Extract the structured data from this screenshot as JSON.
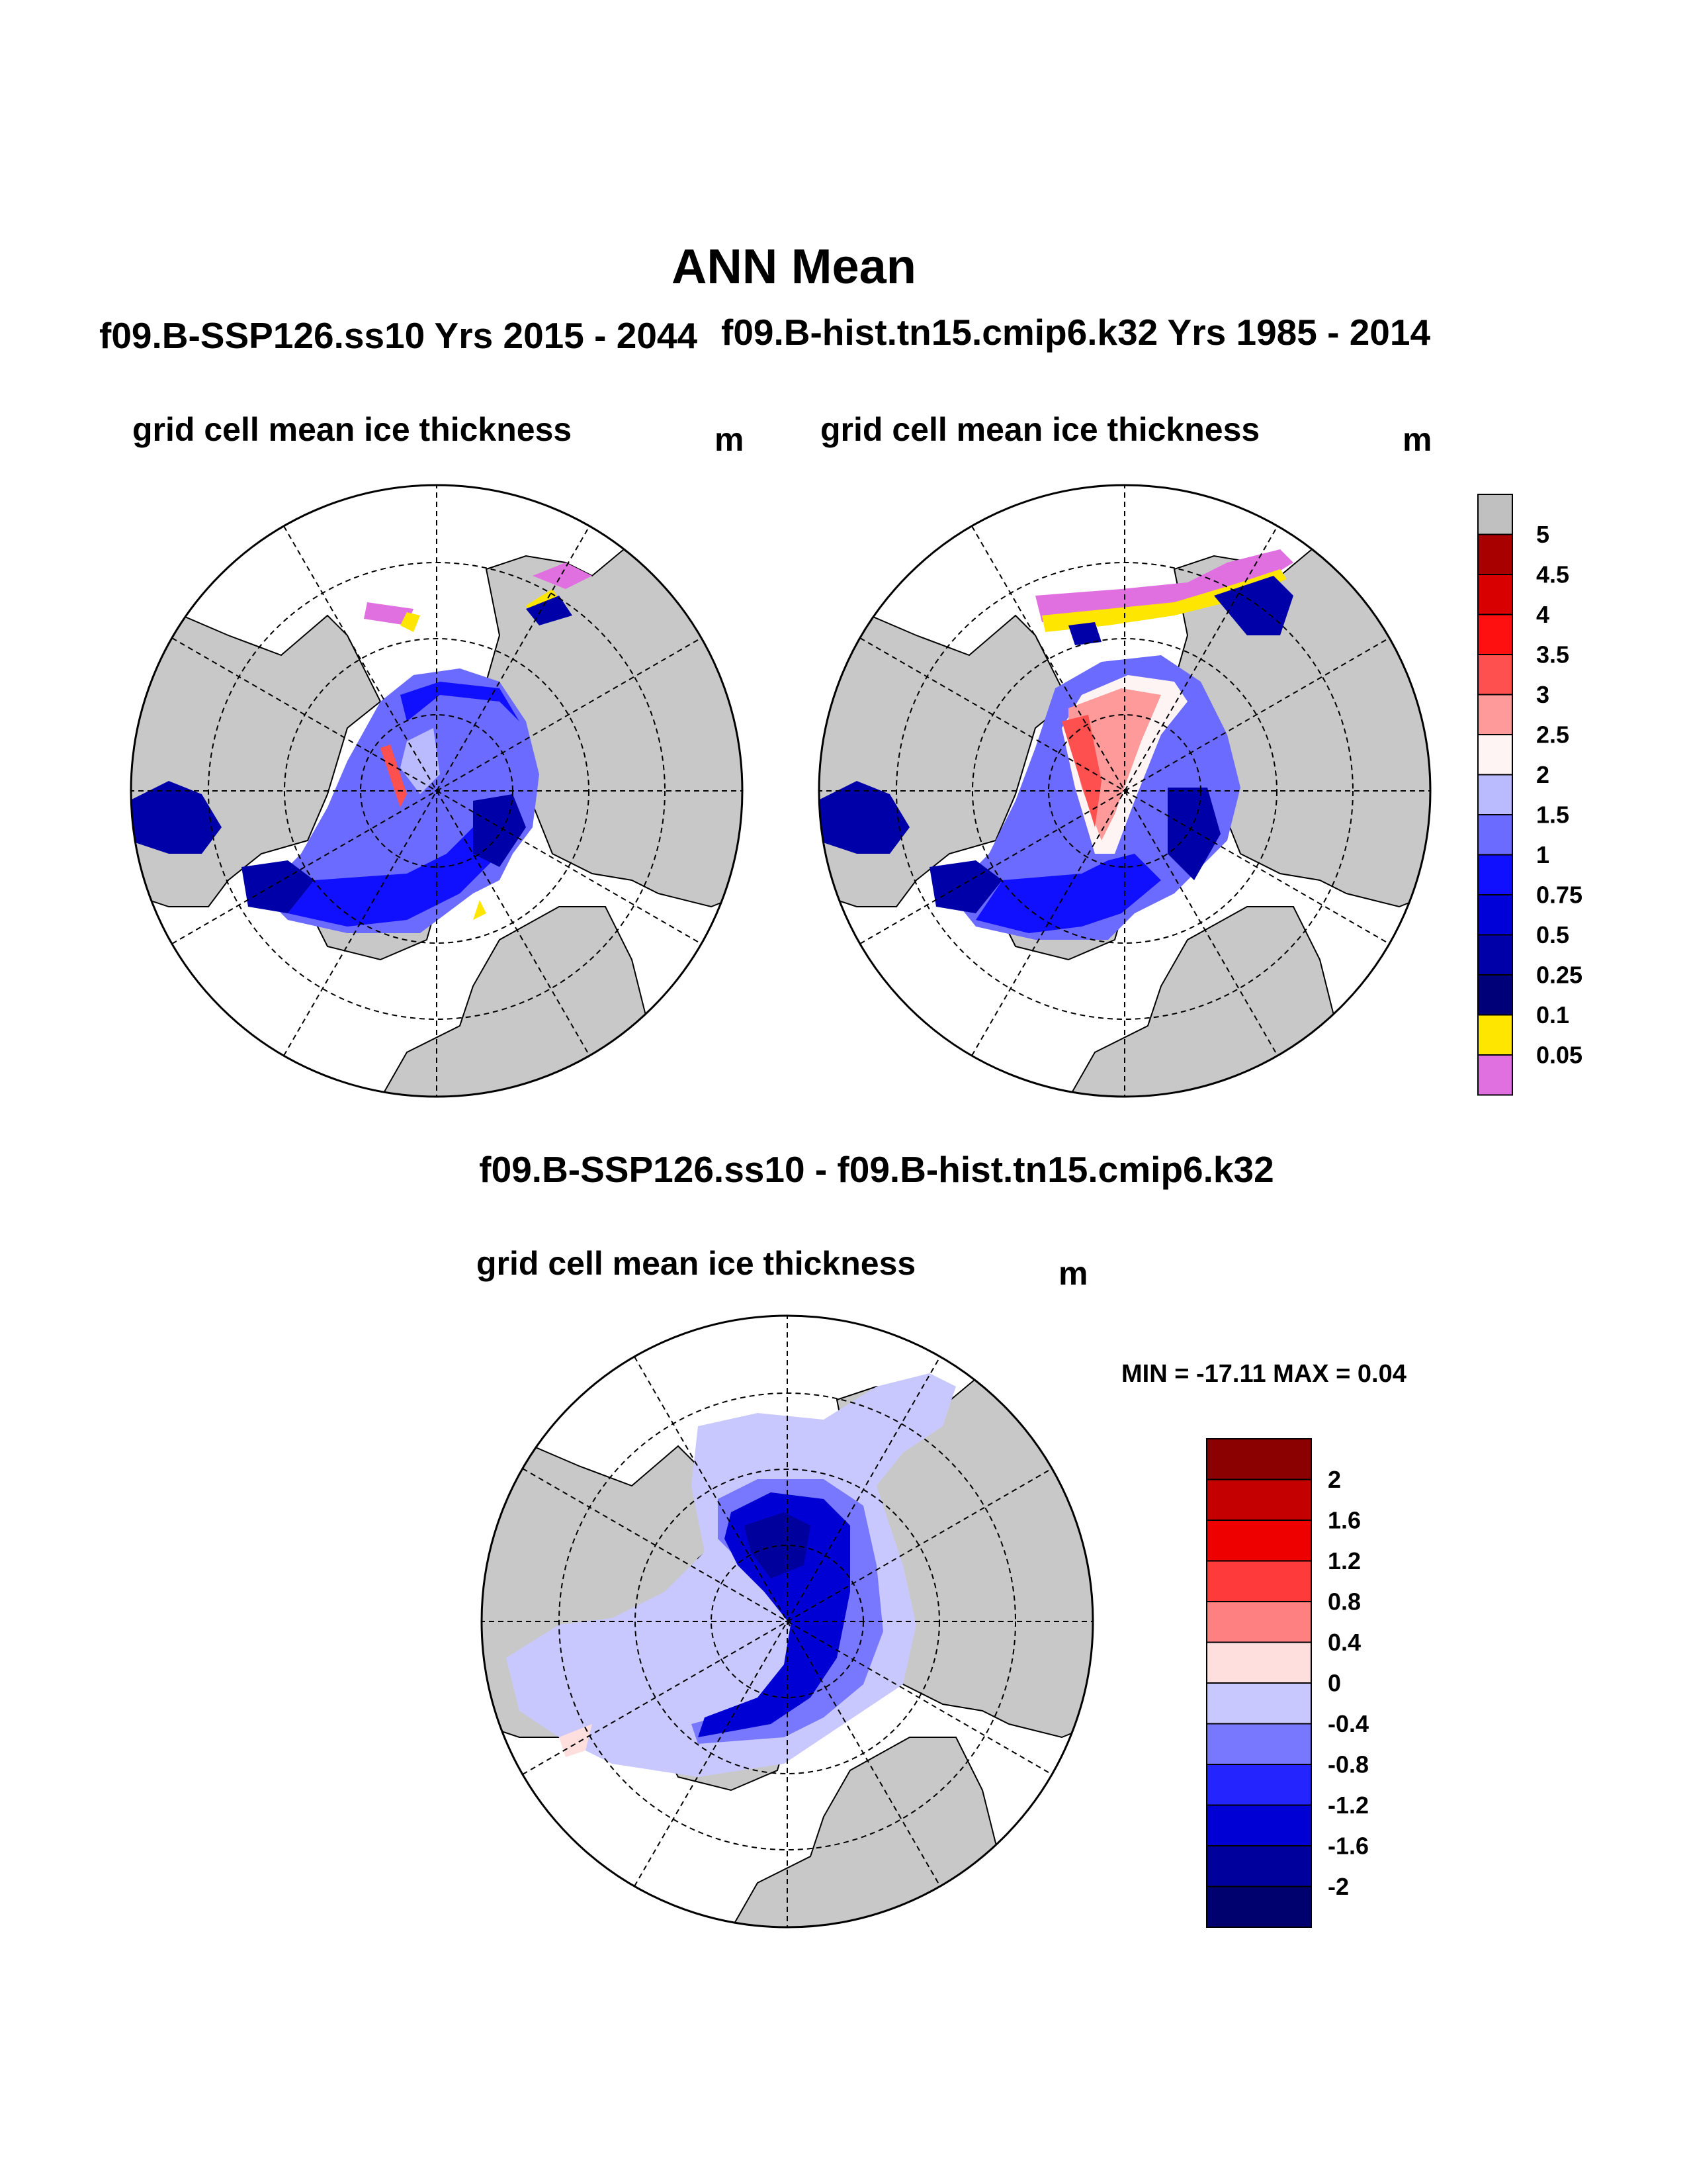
{
  "title": "ANN Mean",
  "panels": {
    "left": {
      "case": "f09.B-SSP126.ss10  Yrs 2015 - 2044",
      "variable": "grid cell mean ice thickness",
      "units": "m"
    },
    "right": {
      "case": "f09.B-hist.tn15.cmip6.k32  Yrs 1985 - 2014",
      "variable": "grid cell mean ice thickness",
      "units": "m"
    },
    "difference": {
      "title": "f09.B-SSP126.ss10 - f09.B-hist.tn15.cmip6.k32",
      "variable": "grid cell mean ice thickness",
      "units": "m",
      "minmax": "MIN = -17.11 MAX =   0.04"
    }
  },
  "colorbars": {
    "thickness": {
      "labels": [
        "5",
        "4.5",
        "4",
        "3.5",
        "3",
        "2.5",
        "2",
        "1.5",
        "1",
        "0.75",
        "0.5",
        "0.25",
        "0.1",
        "0.05"
      ],
      "colors": [
        "#c0c0c0",
        "#a80000",
        "#d80000",
        "#ff1010",
        "#ff5050",
        "#ff9a9a",
        "#fff4f4",
        "#babaff",
        "#6b6bff",
        "#1010ff",
        "#0000d8",
        "#0000a8",
        "#000078",
        "#ffe600",
        "#e070e0"
      ]
    },
    "difference": {
      "labels": [
        "2",
        "1.6",
        "1.2",
        "0.8",
        "0.4",
        "0",
        "-0.4",
        "-0.8",
        "-1.2",
        "-1.6",
        "-2"
      ],
      "colors": [
        "#8b0000",
        "#c40000",
        "#ef0000",
        "#ff3a3a",
        "#ff8080",
        "#ffdede",
        "#c8c8ff",
        "#7878ff",
        "#2424ff",
        "#0000d4",
        "#00009c",
        "#00006e"
      ]
    }
  },
  "map_colors": {
    "land": "#c8c8c8",
    "ocean": "#ffffff",
    "grid": "#000000"
  }
}
